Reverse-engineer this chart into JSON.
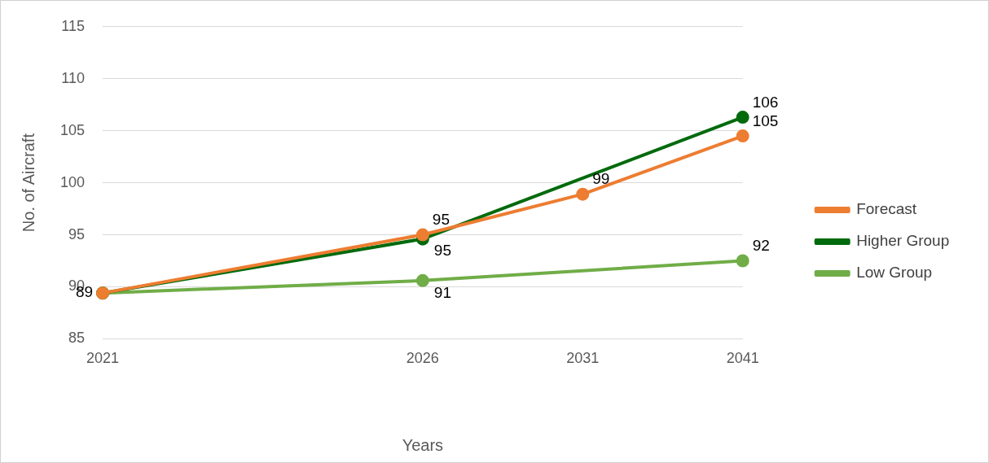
{
  "chart_data": {
    "type": "line",
    "xlabel": "Years",
    "ylabel": "No. of Aircraft",
    "categories": [
      "2021",
      null,
      "2026",
      "2031",
      "2041"
    ],
    "series": [
      {
        "name": "Forecast",
        "color": "#ed7d31",
        "values": [
          89.4,
          null,
          95.0,
          98.9,
          104.5
        ],
        "value_labels": [
          null,
          null,
          "95",
          "99",
          "105"
        ]
      },
      {
        "name": "Higher Group",
        "color": "#006a0c",
        "values": [
          89.4,
          null,
          94.6,
          null,
          106.3
        ],
        "value_labels": [
          null,
          null,
          "95",
          null,
          "106"
        ]
      },
      {
        "name": "Low Group",
        "color": "#70ad47",
        "values": [
          89.4,
          null,
          90.6,
          null,
          92.5
        ],
        "value_labels": [
          "89",
          null,
          "91",
          null,
          "92"
        ]
      }
    ],
    "ylim": [
      85,
      115
    ],
    "yticks": [
      85,
      90,
      95,
      100,
      105,
      110,
      115
    ],
    "grid": "y",
    "legend": "right",
    "marker": "circle",
    "line_style": "solid"
  }
}
